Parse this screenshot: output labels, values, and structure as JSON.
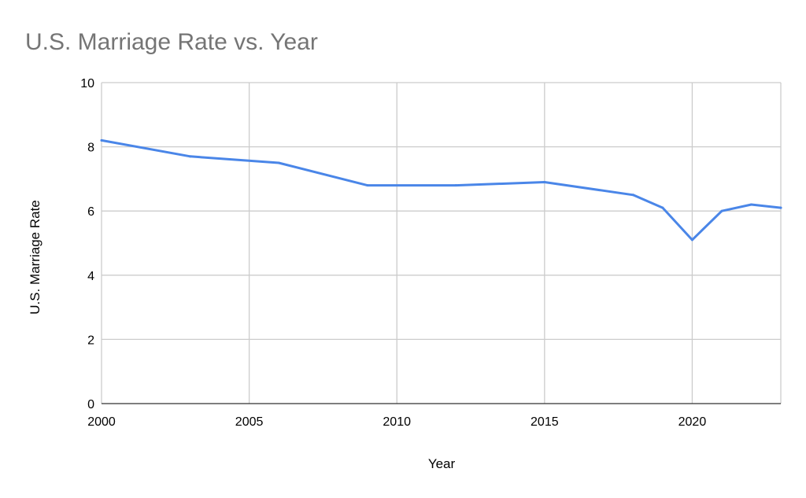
{
  "chart_data": {
    "type": "line",
    "title": "U.S. Marriage Rate vs. Year",
    "xlabel": "Year",
    "ylabel": "U.S. Marriage Rate",
    "xlim": [
      2000,
      2023
    ],
    "ylim": [
      0,
      10
    ],
    "x_ticks": [
      "2000",
      "2005",
      "2010",
      "2015",
      "2020"
    ],
    "y_ticks": [
      "0",
      "2",
      "4",
      "6",
      "8",
      "10"
    ],
    "grid": true,
    "series": [
      {
        "color": "#4a86e8",
        "x": [
          2000,
          2003,
          2006,
          2009,
          2012,
          2015,
          2018,
          2019,
          2020,
          2021,
          2022,
          2023
        ],
        "values": [
          8.2,
          7.7,
          7.5,
          6.8,
          6.8,
          6.9,
          6.5,
          6.1,
          5.1,
          6.0,
          6.2,
          6.1
        ]
      }
    ]
  }
}
